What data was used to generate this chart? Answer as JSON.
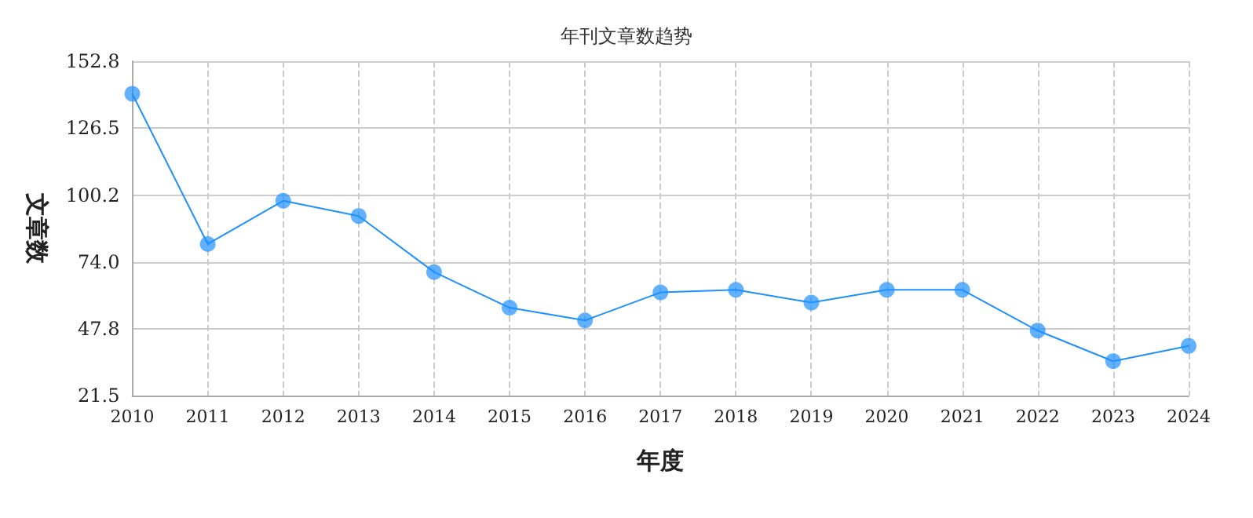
{
  "chart_data": {
    "type": "line",
    "title": "年刊文章数趋势",
    "xlabel": "年度",
    "ylabel": "文章数",
    "categories": [
      "2010",
      "2011",
      "2012",
      "2013",
      "2014",
      "2015",
      "2016",
      "2017",
      "2018",
      "2019",
      "2020",
      "2021",
      "2022",
      "2023",
      "2024"
    ],
    "series": [
      {
        "color": "#1e90ff",
        "values": [
          140,
          81,
          98,
          92,
          70,
          56,
          51,
          62,
          63,
          58,
          63,
          63,
          47,
          35,
          41
        ]
      }
    ],
    "ylim": [
      21.5,
      152.8
    ],
    "yticks": [
      21.5,
      {
        "value": 47.8,
        "label": "47.8"
      },
      {
        "value": 74,
        "label": "74.0"
      },
      {
        "value": 100.2,
        "label": "100.2"
      },
      {
        "value": 126.5,
        "label": "126.5"
      },
      152.8
    ],
    "grid": true,
    "marker": "circle",
    "line_style": "solid"
  }
}
